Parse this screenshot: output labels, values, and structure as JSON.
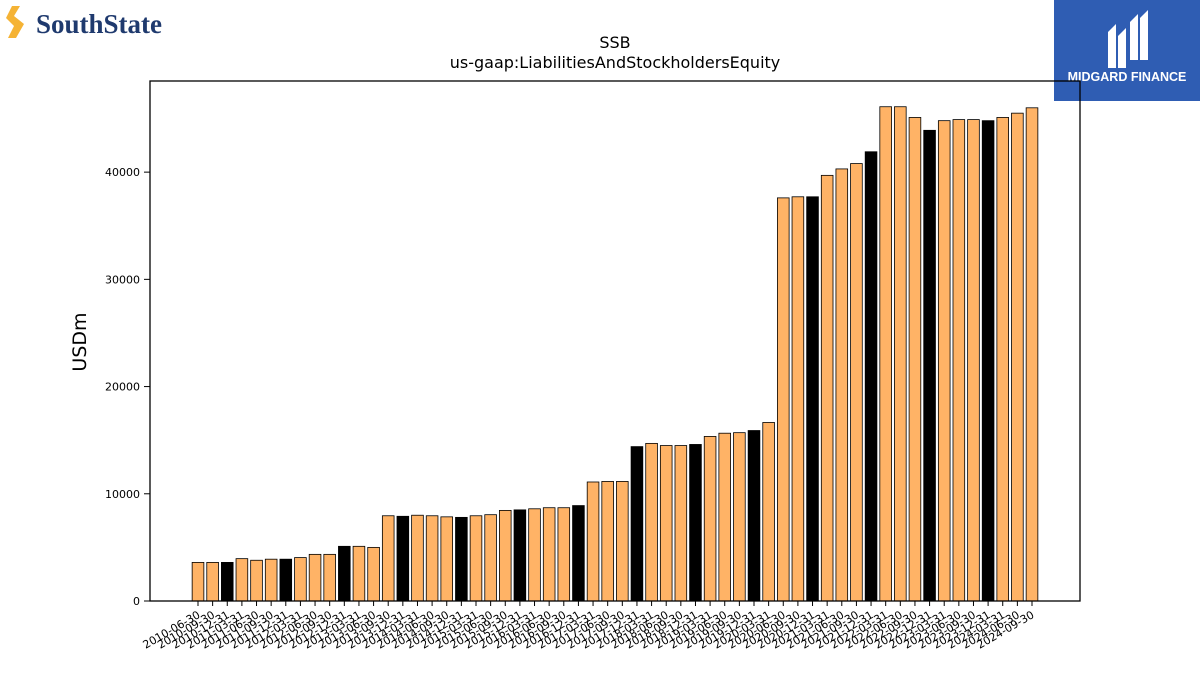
{
  "logos": {
    "left_text": "SouthState",
    "left_icon": "southstate-s-icon",
    "right_text": "MIDGARD FINANCE",
    "right_icon": "midgard-mark-icon",
    "right_bg": "#2f5db3"
  },
  "colors": {
    "bar": "#ffb366",
    "bar_highlight": "#000000",
    "outline": "#000000"
  },
  "chart_data": {
    "type": "bar",
    "title": "SSB",
    "subtitle": "us-gaap:LiabilitiesAndStockholdersEquity",
    "ylabel": "USDm",
    "xlabel": "",
    "ylim": [
      0,
      48500
    ],
    "yticks": [
      0,
      10000,
      20000,
      30000,
      40000
    ],
    "grid": false,
    "categories": [
      "2010-06-30",
      "2010-09-30",
      "2010-12-31",
      "2011-03-31",
      "2011-06-30",
      "2011-09-30",
      "2011-12-31",
      "2012-03-31",
      "2012-06-30",
      "2012-09-30",
      "2012-12-31",
      "2013-03-31",
      "2013-06-30",
      "2013-09-30",
      "2013-12-31",
      "2014-03-31",
      "2014-06-30",
      "2014-09-30",
      "2014-12-31",
      "2015-03-31",
      "2015-06-30",
      "2015-09-30",
      "2015-12-31",
      "2016-03-31",
      "2016-06-30",
      "2016-09-30",
      "2016-12-31",
      "2017-03-31",
      "2017-06-30",
      "2017-09-30",
      "2017-12-31",
      "2018-03-31",
      "2018-06-30",
      "2018-09-30",
      "2018-12-31",
      "2019-03-31",
      "2019-06-30",
      "2019-09-30",
      "2019-12-31",
      "2020-03-31",
      "2020-06-30",
      "2020-09-30",
      "2020-12-31",
      "2021-03-31",
      "2021-06-30",
      "2021-09-30",
      "2021-12-31",
      "2022-03-31",
      "2022-06-30",
      "2022-09-30",
      "2022-12-31",
      "2023-03-31",
      "2023-06-30",
      "2023-09-30",
      "2023-12-31",
      "2024-03-31",
      "2024-06-30",
      "2024-09-30"
    ],
    "values": [
      3600,
      3600,
      3600,
      3950,
      3800,
      3900,
      3900,
      4050,
      4350,
      4350,
      5100,
      5100,
      5000,
      7950,
      7900,
      8000,
      7950,
      7850,
      7800,
      7950,
      8050,
      8450,
      8500,
      8600,
      8700,
      8700,
      8900,
      11100,
      11150,
      11150,
      14400,
      14700,
      14500,
      14500,
      14600,
      15350,
      15650,
      15700,
      15900,
      16650,
      37600,
      37700,
      37700,
      39700,
      40300,
      40800,
      41900,
      46100,
      46100,
      45100,
      43900,
      44800,
      44900,
      44900,
      44800,
      45100,
      45500,
      46000
    ],
    "highlight": [
      false,
      false,
      true,
      false,
      false,
      false,
      true,
      false,
      false,
      false,
      true,
      false,
      false,
      false,
      true,
      false,
      false,
      false,
      true,
      false,
      false,
      false,
      true,
      false,
      false,
      false,
      true,
      false,
      false,
      false,
      true,
      false,
      false,
      false,
      true,
      false,
      false,
      false,
      true,
      false,
      false,
      false,
      true,
      false,
      false,
      false,
      true,
      false,
      false,
      false,
      true,
      false,
      false,
      false,
      true,
      false,
      false,
      false
    ]
  }
}
